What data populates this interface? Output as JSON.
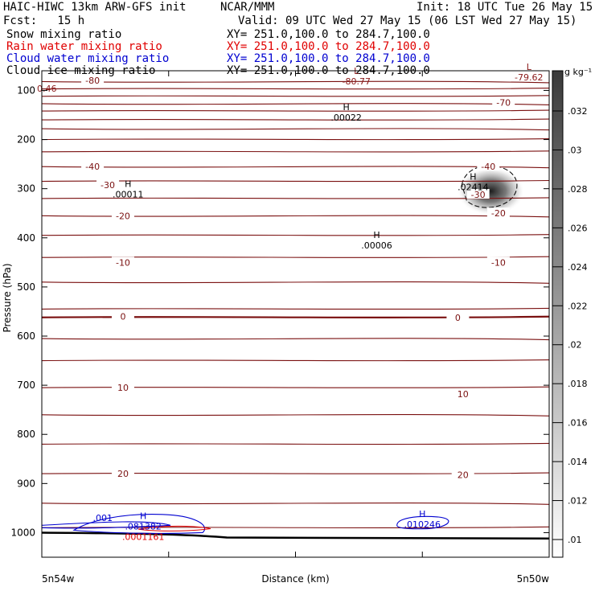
{
  "header": {
    "line1_left": "HAIC-HIWC 13km ARW-GFS init",
    "line1_mid": "NCAR/MMM",
    "line1_right": "Init: 18 UTC Tue 26 May 15",
    "line2_left": "Fcst:   15 h",
    "line2_right": "Valid: 09 UTC Wed 27 May 15 (06 LST Wed 27 May 15)",
    "fields": [
      {
        "name": "Snow mixing ratio",
        "xy": "XY= 251.0,100.0 to 284.7,100.0",
        "color": "#000000"
      },
      {
        "name": "Rain water mixing ratio",
        "xy": "XY= 251.0,100.0 to 284.7,100.0",
        "color": "#e00000"
      },
      {
        "name": "Cloud water mixing ratio",
        "xy": "XY= 251.0,100.0 to 284.7,100.0",
        "color": "#0000d0"
      },
      {
        "name": "Cloud ice mixing ratio",
        "xy": "XY= 251.0,100.0 to 284.7,100.0",
        "color": "#000000"
      }
    ]
  },
  "chart_data": {
    "type": "heatmap",
    "xlabel": "Distance (km)",
    "ylabel": "Pressure (hPa)",
    "x_tick_labels": [
      {
        "label": "5n54w",
        "x": 0
      },
      {
        "label": "5n50w",
        "x": 1
      }
    ],
    "y_ticks": [
      100,
      200,
      300,
      400,
      500,
      600,
      700,
      800,
      900,
      1000
    ],
    "ylim": [
      1050,
      60
    ],
    "colorbar": {
      "unit": "g kg⁻¹",
      "ticks": [
        ".01",
        ".012",
        ".014",
        ".016",
        ".018",
        ".02",
        ".022",
        ".024",
        ".026",
        ".028",
        ".03",
        ".032"
      ]
    },
    "temperature_isotherm_labels": [
      {
        "label": "-80",
        "x": 0.1,
        "p": 80
      },
      {
        "label": "-70",
        "x": 0.91,
        "p": 125
      },
      {
        "label": "-40",
        "x": 0.1,
        "p": 255
      },
      {
        "label": "-40",
        "x": 0.88,
        "p": 255
      },
      {
        "label": "-30",
        "x": 0.13,
        "p": 292
      },
      {
        "label": "-30",
        "x": 0.86,
        "p": 312
      },
      {
        "label": "-20",
        "x": 0.16,
        "p": 355
      },
      {
        "label": "-20",
        "x": 0.9,
        "p": 350
      },
      {
        "label": "-10",
        "x": 0.16,
        "p": 450
      },
      {
        "label": "-10",
        "x": 0.9,
        "p": 450
      },
      {
        "label": "0",
        "x": 0.16,
        "p": 560
      },
      {
        "label": "0",
        "x": 0.82,
        "p": 562
      },
      {
        "label": "10",
        "x": 0.16,
        "p": 705
      },
      {
        "label": "10",
        "x": 0.83,
        "p": 718
      },
      {
        "label": "20",
        "x": 0.16,
        "p": 880
      },
      {
        "label": "20",
        "x": 0.83,
        "p": 882
      }
    ],
    "extrema": [
      {
        "kind": "L",
        "value": "-80.77",
        "x": 0.62,
        "p": 73,
        "color": "#8b1a1a"
      },
      {
        "kind": "L",
        "value": "-79.62",
        "x": 0.96,
        "p": 65,
        "color": "#8b1a1a"
      },
      {
        "kind": "",
        "value": "0.46",
        "x": 0.01,
        "p": 88,
        "color": "#8b1a1a"
      },
      {
        "kind": "H",
        "value": ".00022",
        "x": 0.6,
        "p": 147,
        "color": "#000000"
      },
      {
        "kind": "H",
        "value": ".00011",
        "x": 0.17,
        "p": 303,
        "color": "#000000"
      },
      {
        "kind": "H",
        "value": ".02414",
        "x": 0.85,
        "p": 288,
        "color": "#000000"
      },
      {
        "kind": "H",
        "value": ".00006",
        "x": 0.66,
        "p": 407,
        "color": "#000000"
      },
      {
        "kind": "H",
        "value": ".010246",
        "x": 0.75,
        "p": 975,
        "color": "#0000d0"
      },
      {
        "kind": "H",
        "value": ".081382",
        "x": 0.2,
        "p": 979,
        "color": "#0000d0"
      },
      {
        "kind": "",
        "value": ".0001161",
        "x": 0.2,
        "p": 1000,
        "color": "#e00000"
      }
    ],
    "cloud_water_contour_label": {
      "label": ".001",
      "x": 0.12,
      "p": 970
    },
    "ice_max": {
      "x": 0.885,
      "p": 305,
      "value": 0.0241
    }
  }
}
